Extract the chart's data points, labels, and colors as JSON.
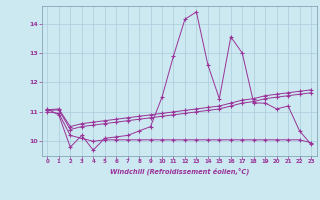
{
  "xlabel": "Windchill (Refroidissement éolien,°C)",
  "bg_color": "#cce8f0",
  "grid_color": "#aaccdd",
  "line_color": "#993399",
  "spine_color": "#7799aa",
  "xlim": [
    -0.5,
    23.5
  ],
  "ylim": [
    9.5,
    14.6
  ],
  "yticks": [
    10,
    11,
    12,
    13,
    14
  ],
  "xticks": [
    0,
    1,
    2,
    3,
    4,
    5,
    6,
    7,
    8,
    9,
    10,
    11,
    12,
    13,
    14,
    15,
    16,
    17,
    18,
    19,
    20,
    21,
    22,
    23
  ],
  "line1_x": [
    0,
    1,
    2,
    3,
    4,
    5,
    6,
    7,
    8,
    9,
    10,
    11,
    12,
    13,
    14,
    15,
    16,
    17,
    18,
    19,
    20,
    21,
    22,
    23
  ],
  "line1_y": [
    11.1,
    10.9,
    9.8,
    10.2,
    9.7,
    10.1,
    10.15,
    10.2,
    10.35,
    10.5,
    11.5,
    12.9,
    14.15,
    14.4,
    12.6,
    11.45,
    13.55,
    13.0,
    11.3,
    11.3,
    11.1,
    11.2,
    10.35,
    9.9
  ],
  "line2_x": [
    0,
    1,
    2,
    3,
    4,
    5,
    6,
    7,
    8,
    9,
    10,
    11,
    12,
    13,
    14,
    15,
    16,
    17,
    18,
    19,
    20,
    21,
    22,
    23
  ],
  "line2_y": [
    11.0,
    10.95,
    10.2,
    10.1,
    10.0,
    10.05,
    10.05,
    10.05,
    10.05,
    10.05,
    10.05,
    10.05,
    10.05,
    10.05,
    10.05,
    10.05,
    10.05,
    10.05,
    10.05,
    10.05,
    10.05,
    10.05,
    10.05,
    9.95
  ],
  "line3_x": [
    0,
    1,
    2,
    3,
    4,
    5,
    6,
    7,
    8,
    9,
    10,
    11,
    12,
    13,
    14,
    15,
    16,
    17,
    18,
    19,
    20,
    21,
    22,
    23
  ],
  "line3_y": [
    11.05,
    11.07,
    10.4,
    10.5,
    10.55,
    10.6,
    10.65,
    10.7,
    10.75,
    10.8,
    10.85,
    10.9,
    10.95,
    11.0,
    11.05,
    11.1,
    11.2,
    11.3,
    11.35,
    11.45,
    11.5,
    11.55,
    11.6,
    11.65
  ],
  "line4_x": [
    0,
    1,
    2,
    3,
    4,
    5,
    6,
    7,
    8,
    9,
    10,
    11,
    12,
    13,
    14,
    15,
    16,
    17,
    18,
    19,
    20,
    21,
    22,
    23
  ],
  "line4_y": [
    11.07,
    11.1,
    10.5,
    10.6,
    10.65,
    10.7,
    10.75,
    10.8,
    10.85,
    10.9,
    10.95,
    11.0,
    11.05,
    11.1,
    11.15,
    11.2,
    11.3,
    11.4,
    11.45,
    11.55,
    11.6,
    11.65,
    11.7,
    11.75
  ]
}
